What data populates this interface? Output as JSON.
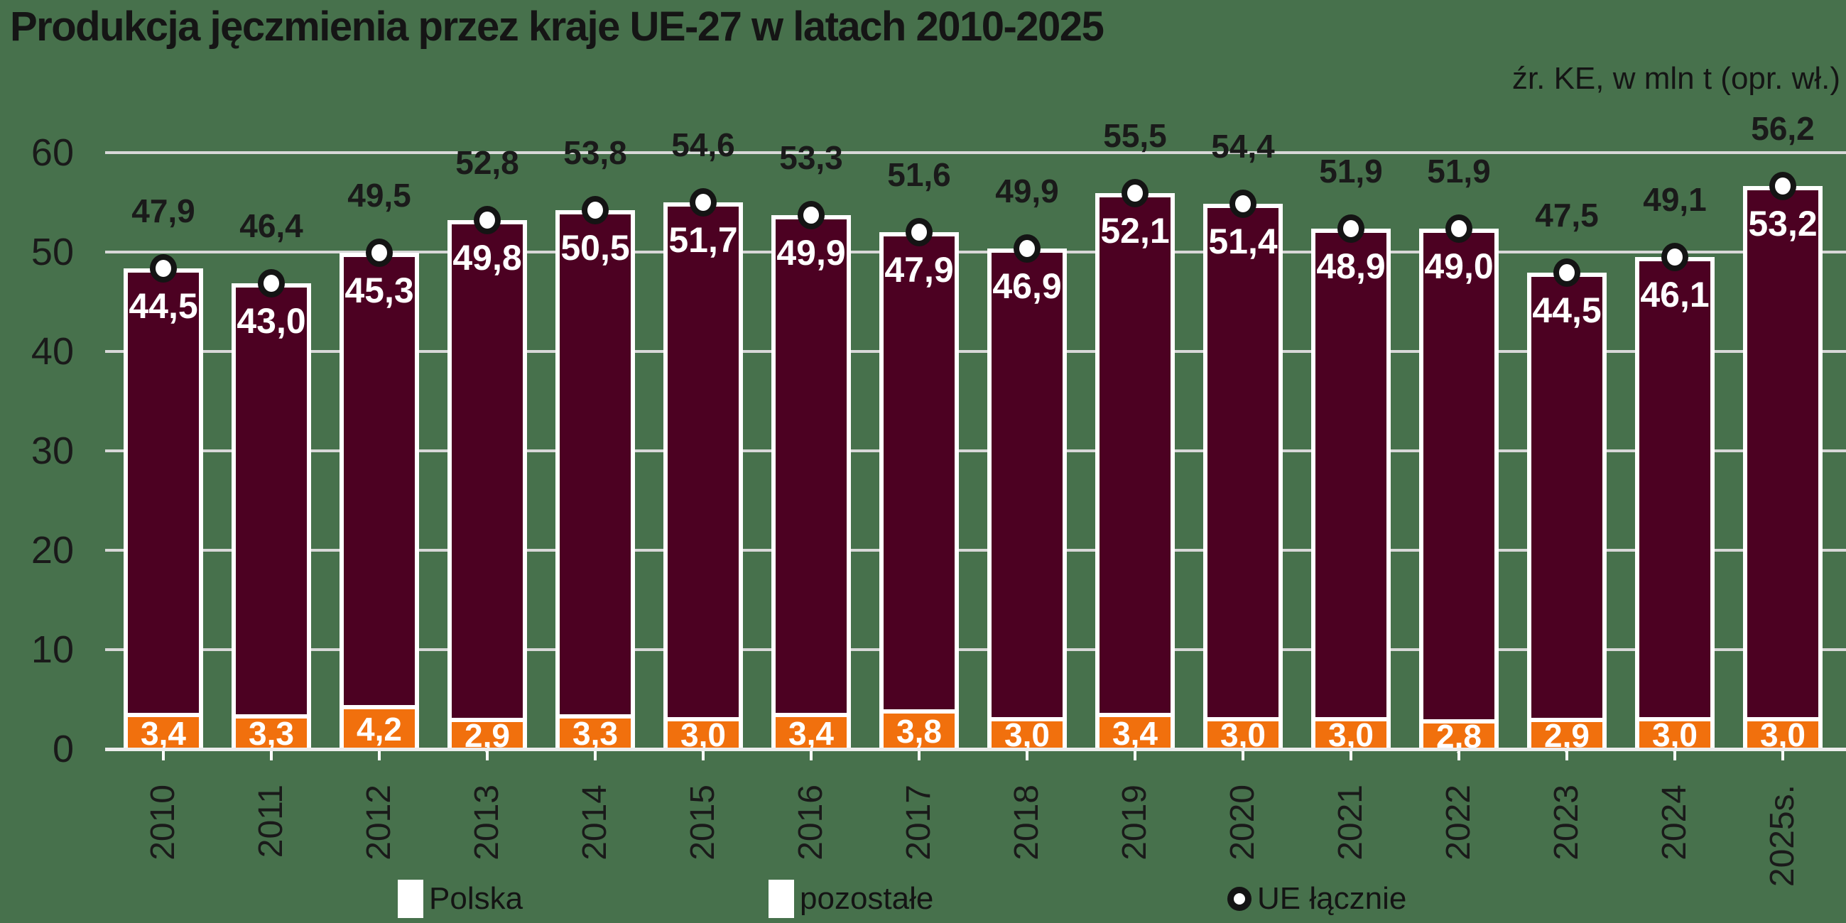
{
  "title": "Produkcja jęczmienia przez kraje UE-27 w latach 2010-2025",
  "source_note": "źr. KE, w mln t (opr. wł.)",
  "colors": {
    "background": "#47714C",
    "polska": "#F1700D",
    "pozostale": "#4C0122",
    "bar_border": "#FFFFFF",
    "marker_fill": "#FFFFFF",
    "marker_border": "#141414",
    "grid": "#D8D8D8",
    "axis": "#EDEDED",
    "text": "#1A1A1A"
  },
  "chart_data": {
    "type": "bar",
    "stacked": true,
    "grid": true,
    "legend_position": "bottom",
    "value_label_format": "comma-decimal",
    "ylim": [
      0,
      60
    ],
    "yticks": [
      0,
      10,
      20,
      30,
      40,
      50,
      60
    ],
    "categories": [
      "2010",
      "2011",
      "2012",
      "2013",
      "2014",
      "2015",
      "2016",
      "2017",
      "2018",
      "2019",
      "2020",
      "2021",
      "2022",
      "2023",
      "2024",
      "2025s."
    ],
    "series": [
      {
        "name": "Polska",
        "role": "stack-bottom",
        "color_key": "polska",
        "values": [
          3.4,
          3.3,
          4.2,
          2.9,
          3.3,
          3.0,
          3.4,
          3.8,
          3.0,
          3.4,
          3.0,
          3.0,
          2.8,
          2.9,
          3.0,
          3.0
        ]
      },
      {
        "name": "pozostałe",
        "role": "stack-top",
        "color_key": "pozostale",
        "values": [
          44.5,
          43.0,
          45.3,
          49.8,
          50.5,
          51.7,
          49.9,
          47.9,
          46.9,
          52.1,
          51.4,
          48.9,
          49.0,
          44.5,
          46.1,
          53.2
        ]
      },
      {
        "name": "UE łącznie",
        "role": "marker",
        "color_key": "marker_fill",
        "values": [
          47.9,
          46.4,
          49.5,
          52.8,
          53.8,
          54.6,
          53.3,
          51.6,
          49.9,
          55.5,
          54.4,
          51.9,
          51.9,
          47.5,
          49.1,
          56.2
        ]
      }
    ]
  }
}
